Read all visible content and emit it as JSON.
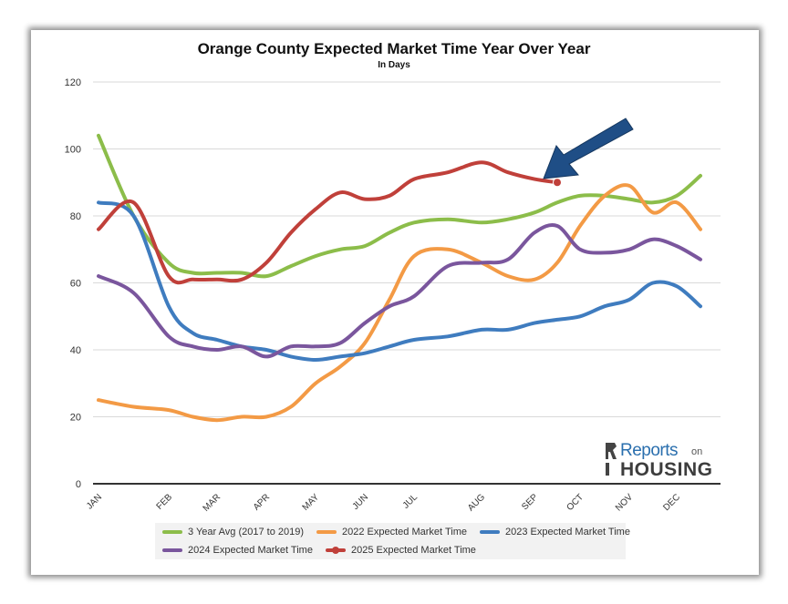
{
  "chart_data": {
    "type": "line",
    "title": "Orange County Expected Market Time Year Over Year",
    "subtitle": "In Days",
    "x_tick_labels": [
      "JAN",
      "FEB",
      "MAR",
      "APR",
      "MAY",
      "JUN",
      "JUL",
      "AUG",
      "SEP",
      "OCT",
      "NOV",
      "DEC"
    ],
    "ylim": [
      0,
      120
    ],
    "y_ticks": [
      0,
      20,
      40,
      60,
      80,
      100,
      120
    ],
    "grid": true,
    "legend_position": "bottom",
    "series": [
      {
        "name": "3 Year Avg (2017 to 2019)",
        "color": "#8cbd4a",
        "marker": false,
        "x": [
          0,
          0.5,
          1,
          1.5,
          2,
          2.5,
          3,
          3.5,
          4,
          4.5,
          5,
          5.5,
          6,
          6.5,
          7,
          7.5,
          8,
          8.5,
          9,
          9.5,
          10,
          10.5,
          11,
          11.5
        ],
        "y": [
          104,
          80,
          66,
          63,
          63,
          63,
          62,
          65,
          68,
          70,
          71,
          75,
          78,
          79,
          78,
          79,
          81,
          84,
          86,
          86,
          85,
          84,
          86,
          92
        ]
      },
      {
        "name": "2022 Expected Market Time",
        "color": "#f39a45",
        "marker": false,
        "x": [
          0,
          0.5,
          1,
          1.5,
          2,
          2.5,
          3,
          3.5,
          4,
          4.5,
          5,
          5.5,
          6,
          6.5,
          7,
          7.5,
          8,
          8.5,
          9,
          9.5,
          10,
          10.5,
          11,
          11.5
        ],
        "y": [
          25,
          23,
          22,
          20,
          19,
          20,
          20,
          23,
          30,
          35,
          42,
          55,
          68,
          70,
          66,
          62,
          61,
          66,
          77,
          86,
          89,
          81,
          84,
          76
        ]
      },
      {
        "name": "2023 Expected Market Time",
        "color": "#3f7cbf",
        "marker": false,
        "x": [
          0,
          0.5,
          1,
          1.5,
          2,
          2.5,
          3,
          3.5,
          4,
          4.5,
          5,
          5.5,
          6,
          6.5,
          7,
          7.5,
          8,
          8.5,
          9,
          9.5,
          10,
          10.5,
          11,
          11.5
        ],
        "y": [
          84,
          80,
          53,
          45,
          43,
          41,
          40,
          38,
          37,
          38,
          39,
          41,
          43,
          44,
          46,
          46,
          48,
          49,
          50,
          53,
          55,
          60,
          59,
          53
        ]
      },
      {
        "name": "2024 Expected Market Time",
        "color": "#7a569d",
        "marker": false,
        "x": [
          0,
          0.5,
          1,
          1.5,
          2,
          2.5,
          3,
          3.5,
          4,
          4.5,
          5,
          5.5,
          6,
          6.5,
          7,
          7.5,
          8,
          8.5,
          9,
          9.5,
          10,
          10.5,
          11,
          11.5
        ],
        "y": [
          62,
          57,
          44,
          41,
          40,
          41,
          38,
          41,
          41,
          42,
          48,
          53,
          56,
          65,
          66,
          67,
          75,
          77,
          70,
          69,
          70,
          73,
          71,
          67
        ]
      },
      {
        "name": "2025 Expected Market Time",
        "color": "#c0403a",
        "marker": true,
        "x": [
          0,
          0.5,
          1,
          1.5,
          2,
          2.5,
          3,
          3.5,
          4,
          4.5,
          5,
          5.5,
          6,
          6.5,
          7,
          7.5,
          8,
          8.5
        ],
        "y": [
          76,
          84,
          62,
          61,
          61,
          61,
          66,
          75,
          82,
          87,
          85,
          86,
          91,
          93,
          96,
          93,
          91,
          90
        ]
      }
    ],
    "annotation": "arrow pointing to latest 2025 value"
  },
  "logo": {
    "line1": "Reports",
    "line1b": "on",
    "line2": "HOUSING"
  },
  "colors": {
    "gridline": "#d9d9d9",
    "axis": "#333333",
    "arrow": "#1f4e86"
  }
}
